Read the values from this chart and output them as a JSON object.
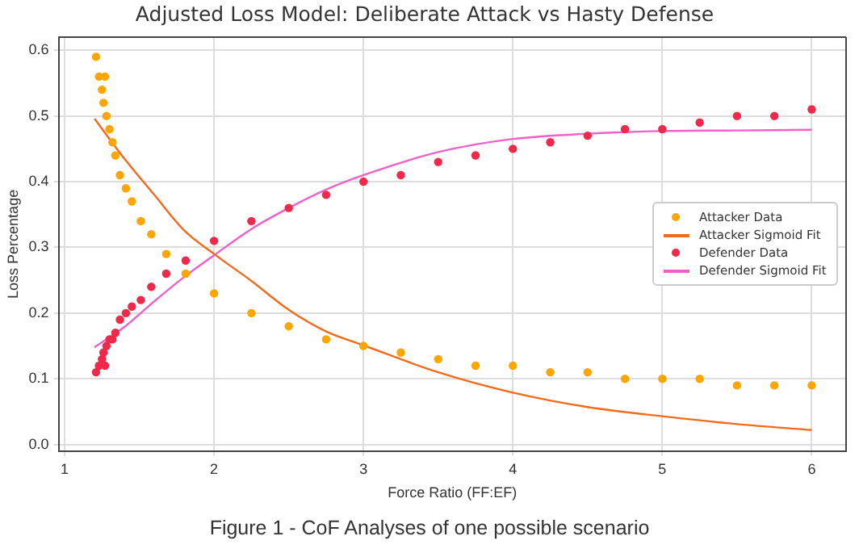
{
  "chart_data": {
    "type": "scatter",
    "title": "Adjusted Loss Model: Deliberate Attack vs Hasty Defense",
    "xlabel": "Force Ratio (FF:EF)",
    "ylabel": "Loss Percentage",
    "annotations": [
      "Figure 1 - CoF Analyses of one possible scenario"
    ],
    "xlim": [
      0.96,
      6.23
    ],
    "ylim": [
      -0.01,
      0.62
    ],
    "xticks": [
      1,
      2,
      3,
      4,
      5,
      6
    ],
    "yticks": [
      {
        "value": 0,
        "label": "0.0"
      },
      {
        "value": 0.1,
        "label": "0.1"
      },
      {
        "value": 0.2,
        "label": "0.2"
      },
      {
        "value": 0.3,
        "label": "0.3"
      },
      {
        "value": 0.4,
        "label": "0.4"
      },
      {
        "value": 0.5,
        "label": "0.5"
      },
      {
        "value": 0.6,
        "label": "0.6"
      }
    ],
    "grid": true,
    "legend": "right",
    "line_style": "solid",
    "series": [
      {
        "name": "Attacker Data",
        "type": "scatter",
        "marker": "circle",
        "color": "#ffa500",
        "x": [
          1.21,
          1.23,
          1.27,
          1.25,
          1.26,
          1.28,
          1.3,
          1.32,
          1.34,
          1.37,
          1.41,
          1.45,
          1.51,
          1.58,
          1.68,
          1.81,
          2.0,
          2.25,
          2.5,
          2.75,
          3.0,
          3.25,
          3.5,
          3.75,
          4.0,
          4.25,
          4.5,
          4.75,
          5.0,
          5.25,
          5.5,
          5.75,
          6.0
        ],
        "values": [
          0.59,
          0.56,
          0.56,
          0.54,
          0.52,
          0.5,
          0.48,
          0.46,
          0.44,
          0.41,
          0.39,
          0.37,
          0.34,
          0.32,
          0.29,
          0.26,
          0.23,
          0.2,
          0.18,
          0.16,
          0.15,
          0.14,
          0.13,
          0.12,
          0.12,
          0.11,
          0.11,
          0.1,
          0.1,
          0.1,
          0.09,
          0.09,
          0.09
        ]
      },
      {
        "name": "Attacker Sigmoid Fit",
        "type": "line",
        "marker": "none",
        "color": "#f26b1d",
        "x": [
          1.2,
          1.4,
          1.6,
          1.8,
          2.0,
          2.25,
          2.5,
          2.75,
          3.0,
          3.5,
          4.0,
          4.5,
          5.0,
          5.5,
          6.0
        ],
        "values": [
          0.496,
          0.435,
          0.38,
          0.326,
          0.29,
          0.249,
          0.205,
          0.172,
          0.151,
          0.11,
          0.079,
          0.057,
          0.043,
          0.031,
          0.022
        ]
      },
      {
        "name": "Defender Data",
        "type": "scatter",
        "marker": "circle",
        "color": "#f0284a",
        "x": [
          1.21,
          1.23,
          1.27,
          1.25,
          1.26,
          1.28,
          1.3,
          1.32,
          1.34,
          1.37,
          1.41,
          1.45,
          1.51,
          1.58,
          1.68,
          1.81,
          2.0,
          2.25,
          2.5,
          2.75,
          3.0,
          3.25,
          3.5,
          3.75,
          4.0,
          4.25,
          4.5,
          4.75,
          5.0,
          5.25,
          5.5,
          5.75,
          6.0
        ],
        "values": [
          0.11,
          0.12,
          0.12,
          0.13,
          0.14,
          0.15,
          0.16,
          0.16,
          0.17,
          0.19,
          0.2,
          0.21,
          0.22,
          0.24,
          0.26,
          0.28,
          0.31,
          0.34,
          0.36,
          0.38,
          0.4,
          0.41,
          0.43,
          0.44,
          0.45,
          0.46,
          0.47,
          0.48,
          0.48,
          0.49,
          0.5,
          0.5,
          0.51
        ]
      },
      {
        "name": "Defender Sigmoid Fit",
        "type": "line",
        "marker": "none",
        "color": "#f060c8",
        "x": [
          1.2,
          1.4,
          1.6,
          1.8,
          2.0,
          2.25,
          2.5,
          2.75,
          3.0,
          3.5,
          4.0,
          4.5,
          5.0,
          5.5,
          6.0
        ],
        "values": [
          0.148,
          0.179,
          0.218,
          0.255,
          0.288,
          0.328,
          0.36,
          0.388,
          0.41,
          0.445,
          0.465,
          0.473,
          0.477,
          0.478,
          0.479
        ]
      }
    ]
  }
}
